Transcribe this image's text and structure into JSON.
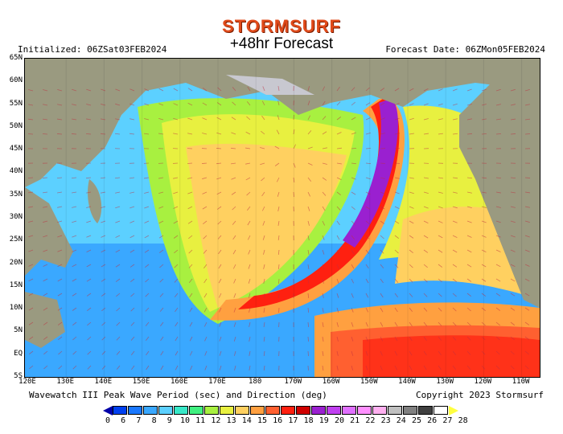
{
  "header": {
    "brand": "STORMSURF",
    "title": "+48hr Forecast",
    "initialized": "Initialized: 06ZSat03FEB2024",
    "forecast_date": "Forecast Date: 06ZMon05FEB2024"
  },
  "map": {
    "lat_labels": [
      "65N",
      "60N",
      "55N",
      "50N",
      "45N",
      "40N",
      "35N",
      "30N",
      "25N",
      "20N",
      "15N",
      "10N",
      "5N",
      "EQ",
      "5S"
    ],
    "lon_labels": [
      "120E",
      "130E",
      "140E",
      "150E",
      "160E",
      "170E",
      "180",
      "170W",
      "160W",
      "150W",
      "140W",
      "130W",
      "120W",
      "110W"
    ],
    "land_color": "#9a9a80",
    "ice_color": "#c8c8d0"
  },
  "footer": {
    "description": "Wavewatch III Peak Wave Period (sec) and Direction (deg)",
    "copyright": "Copyright 2023 Stormsurf"
  },
  "legend": {
    "values": [
      "0",
      "6",
      "7",
      "8",
      "9",
      "10",
      "11",
      "12",
      "13",
      "14",
      "15",
      "16",
      "17",
      "18",
      "19",
      "20",
      "21",
      "22",
      "23",
      "24",
      "25",
      "26",
      "27",
      "28"
    ],
    "colors": [
      "#0000a8",
      "#0040f0",
      "#1a78ff",
      "#3aa8ff",
      "#5cd0ff",
      "#38e8c8",
      "#40f080",
      "#a8f040",
      "#e8f040",
      "#ffd060",
      "#ffa040",
      "#ff6030",
      "#ff2010",
      "#d00000",
      "#9a20d0",
      "#c040f0",
      "#e070ff",
      "#ff90ff",
      "#ffb0f0",
      "#c0c0c0",
      "#808080",
      "#404040",
      "#ffffff",
      "#ffff40"
    ]
  }
}
